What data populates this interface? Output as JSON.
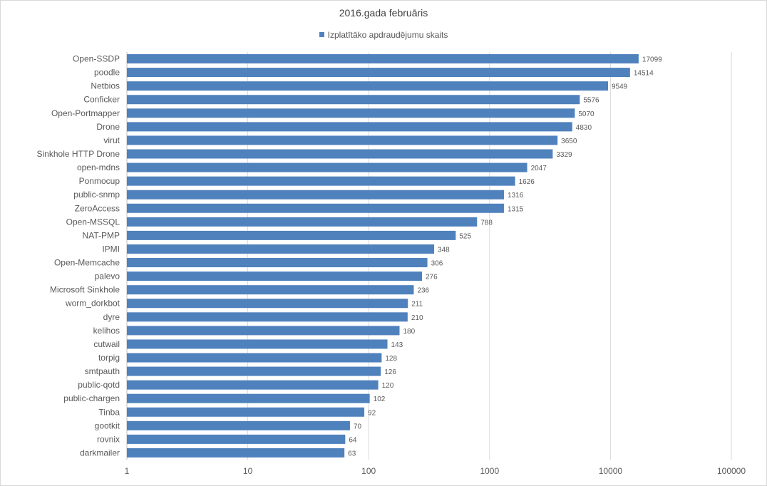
{
  "chart_data": {
    "type": "bar",
    "orientation": "horizontal",
    "title": "2016.gada februāris",
    "xlabel": "",
    "ylabel": "",
    "x_scale": "log",
    "xlim": [
      1,
      100000
    ],
    "x_ticks": [
      "1",
      "10",
      "100",
      "1000",
      "10000",
      "100000"
    ],
    "grid": true,
    "legend_position": "top",
    "bar_color": "#4f81bd",
    "categories": [
      "Open-SSDP",
      "poodle",
      "Netbios",
      "Conficker",
      "Open-Portmapper",
      "Drone",
      "virut",
      "Sinkhole HTTP Drone",
      "open-mdns",
      "Ponmocup",
      "public-snmp",
      "ZeroAccess",
      "Open-MSSQL",
      "NAT-PMP",
      "IPMI",
      "Open-Memcache",
      "palevo",
      "Microsoft Sinkhole",
      "worm_dorkbot",
      "dyre",
      "kelihos",
      "cutwail",
      "torpig",
      "smtpauth",
      "public-qotd",
      "public-chargen",
      "Tinba",
      "gootkit",
      "rovnix",
      "darkmailer"
    ],
    "series": [
      {
        "name": "Izplatītāko apdraudējumu skaits",
        "values": [
          17099,
          14514,
          9549,
          5576,
          5070,
          4830,
          3650,
          3329,
          2047,
          1626,
          1316,
          1315,
          788,
          525,
          348,
          306,
          276,
          236,
          211,
          210,
          180,
          143,
          128,
          126,
          120,
          102,
          92,
          70,
          64,
          63
        ]
      }
    ]
  }
}
